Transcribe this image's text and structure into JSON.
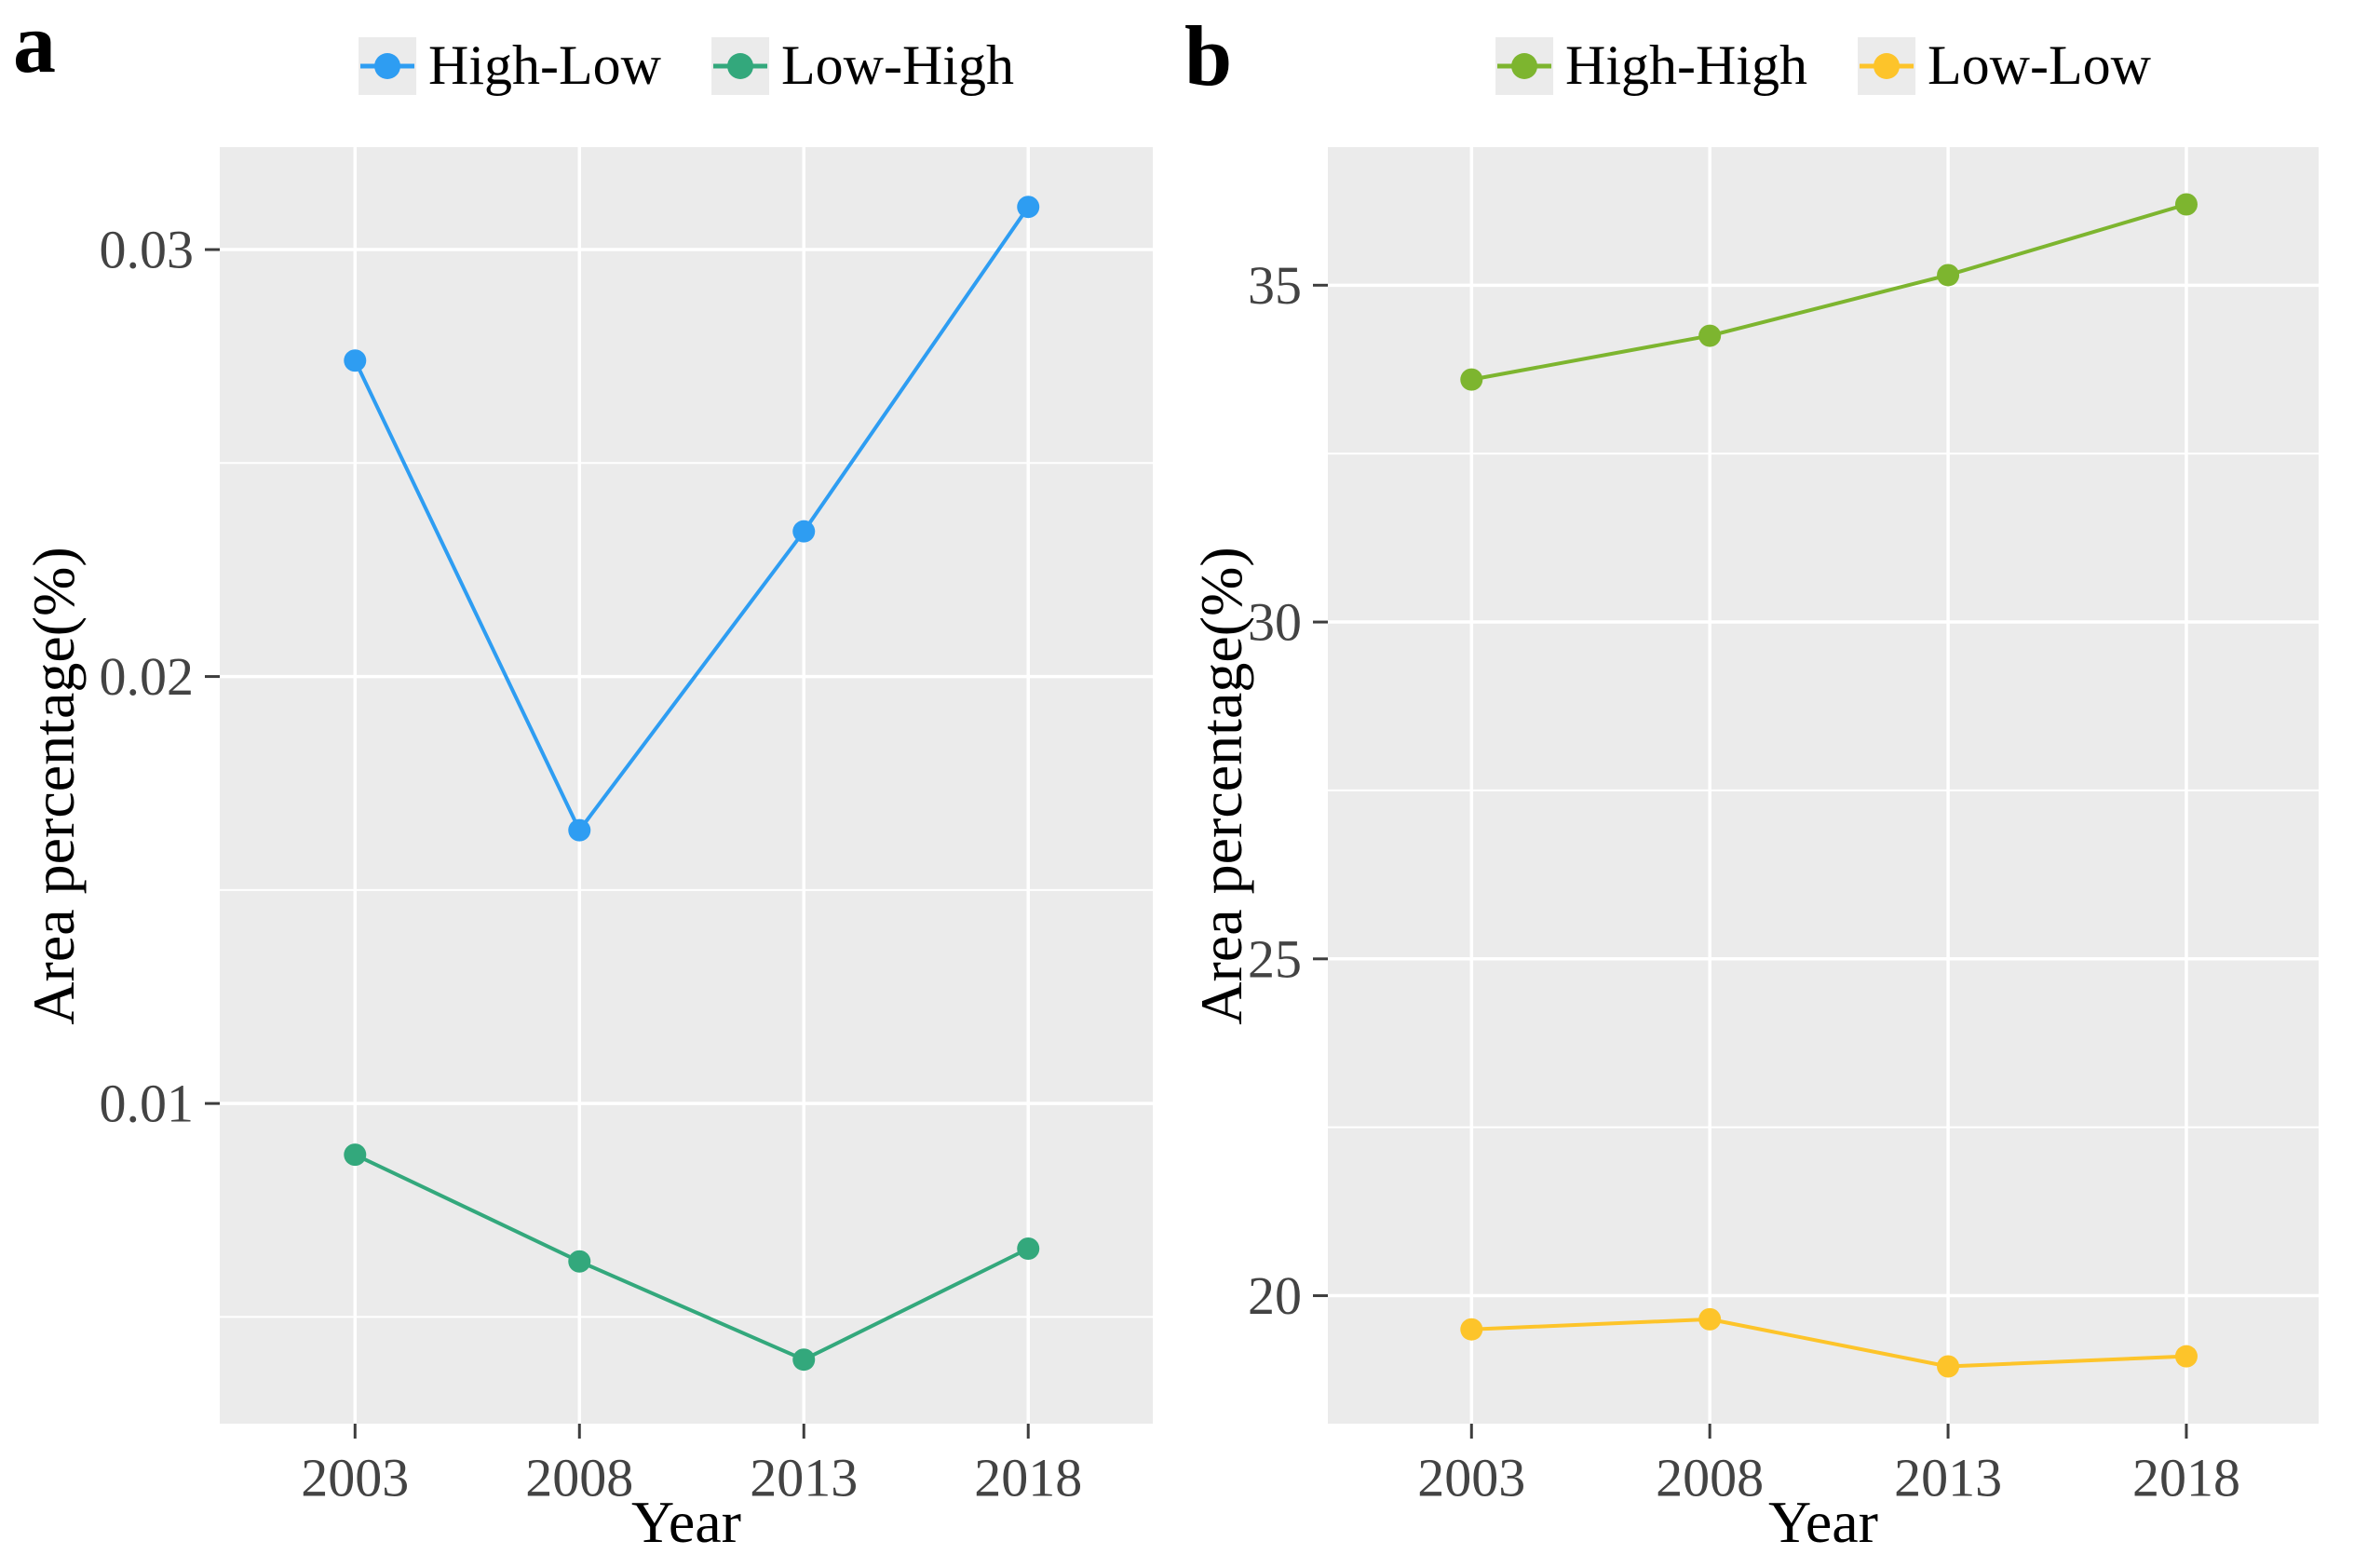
{
  "figure": {
    "background": "#ffffff",
    "panel_background": "#ebebeb",
    "grid_color": "#ffffff",
    "tick_color": "#3d3d3d",
    "tick_label_color": "#434343",
    "axis_title_color": "#000000"
  },
  "chart_data": [
    {
      "type": "line",
      "panel_label": "a",
      "xlabel": "Year",
      "ylabel": "Area percentage(%)",
      "x_categories": [
        "2003",
        "2008",
        "2013",
        "2018"
      ],
      "ylim": [
        0.0025,
        0.0324
      ],
      "yticks": [
        0.01,
        0.02,
        0.03
      ],
      "ytick_labels": [
        "0.01",
        "0.02",
        "0.03"
      ],
      "yminor": [
        0.005,
        0.015,
        0.025
      ],
      "grid": true,
      "legend_position": "top",
      "series": [
        {
          "name": "High-Low",
          "color": "#2e9df2",
          "values": [
            0.0274,
            0.0164,
            0.0234,
            0.031
          ]
        },
        {
          "name": "Low-High",
          "color": "#33a87c",
          "values": [
            0.0088,
            0.0063,
            0.004,
            0.0066
          ]
        }
      ]
    },
    {
      "type": "line",
      "panel_label": "b",
      "xlabel": "Year",
      "ylabel": "Area percentage(%)",
      "x_categories": [
        "2003",
        "2008",
        "2013",
        "2018"
      ],
      "ylim": [
        18.1,
        37.05
      ],
      "yticks": [
        20,
        25,
        30,
        35
      ],
      "ytick_labels": [
        "20",
        "25",
        "30",
        "35"
      ],
      "yminor": [
        22.5,
        27.5,
        32.5
      ],
      "grid": true,
      "legend_position": "top",
      "series": [
        {
          "name": "High-High",
          "color": "#7db52f",
          "values": [
            33.6,
            34.25,
            35.15,
            36.2
          ]
        },
        {
          "name": "Low-Low",
          "color": "#fdc42a",
          "values": [
            19.5,
            19.65,
            18.95,
            19.1
          ]
        }
      ]
    }
  ]
}
